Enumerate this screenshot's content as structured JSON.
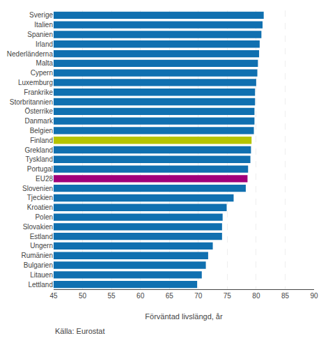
{
  "chart_data": {
    "type": "bar",
    "orientation": "horizontal",
    "categories": [
      "Sverige",
      "Italien",
      "Spanien",
      "Irland",
      "Nederländerna",
      "Malta",
      "Cypern",
      "Luxemburg",
      "Frankrike",
      "Storbritannien",
      "Österrike",
      "Danmark",
      "Belgien",
      "Finland",
      "Grekland",
      "Tyskland",
      "Portugal",
      "EU28",
      "Slovenien",
      "Tjeckien",
      "Kroatien",
      "Polen",
      "Slovakien",
      "Estland",
      "Ungern",
      "Rumänien",
      "Bulgarien",
      "Litauen",
      "Lettland"
    ],
    "values": [
      81.3,
      81.1,
      80.9,
      80.6,
      80.5,
      80.3,
      80.2,
      80.0,
      79.8,
      79.8,
      79.7,
      79.7,
      79.6,
      79.2,
      79.1,
      79.0,
      78.6,
      78.5,
      78.2,
      76.1,
      74.9,
      74.2,
      74.1,
      74.1,
      72.5,
      71.7,
      71.3,
      70.6,
      69.8
    ],
    "colors": [
      "#1070b0",
      "#1070b0",
      "#1070b0",
      "#1070b0",
      "#1070b0",
      "#1070b0",
      "#1070b0",
      "#1070b0",
      "#1070b0",
      "#1070b0",
      "#1070b0",
      "#1070b0",
      "#1070b0",
      "#b5c400",
      "#1070b0",
      "#1070b0",
      "#1070b0",
      "#a0007a",
      "#1070b0",
      "#1070b0",
      "#1070b0",
      "#1070b0",
      "#1070b0",
      "#1070b0",
      "#1070b0",
      "#1070b0",
      "#1070b0",
      "#1070b0",
      "#1070b0"
    ],
    "xlabel": "Förväntad livslängd, år",
    "annotations": [
      "Källa: Eurostat"
    ],
    "xlim": [
      45,
      90
    ],
    "xticks": [
      45,
      50,
      55,
      60,
      65,
      70,
      75,
      80,
      85,
      90
    ],
    "grid": true
  }
}
